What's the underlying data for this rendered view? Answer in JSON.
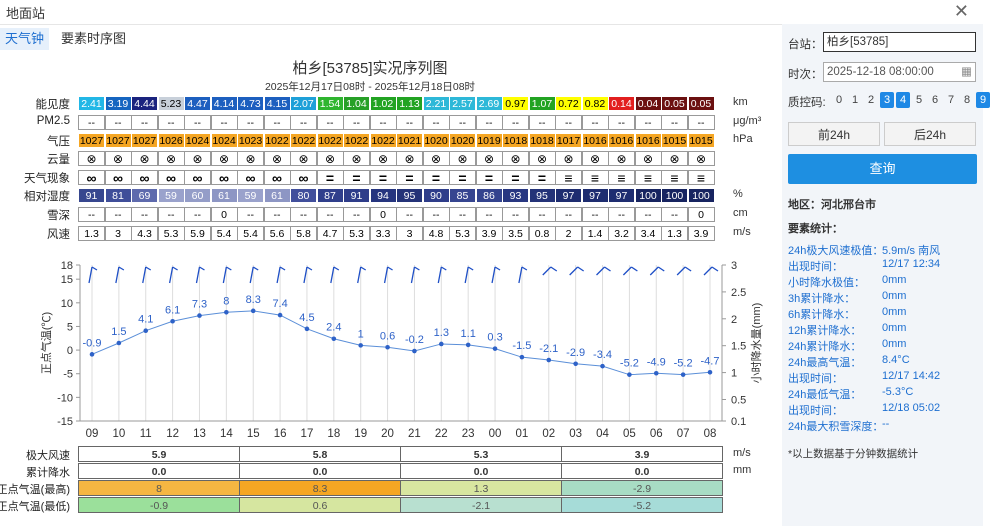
{
  "window": {
    "title": "地面站"
  },
  "tabs": [
    "天气钟",
    "要素时序图"
  ],
  "chart": {
    "title": "柏乡[53785]实况序列图",
    "subtitle": "2025年12月17日08时 - 2025年12月18日08时"
  },
  "rows": [
    {
      "label": "能见度",
      "unit": "km",
      "type": "vis",
      "values": [
        "2.41",
        "3.19",
        "4.44",
        "5.23",
        "4.47",
        "4.14",
        "4.73",
        "4.15",
        "2.07",
        "1.54",
        "1.04",
        "1.02",
        "1.13",
        "2.21",
        "2.57",
        "2.69",
        "0.97",
        "1.07",
        "0.72",
        "0.82",
        "0.14",
        "0.04",
        "0.05",
        "0.05"
      ]
    },
    {
      "label": "PM2.5",
      "unit": "μg/m³",
      "type": "plain",
      "values": [
        "--",
        "--",
        "--",
        "--",
        "--",
        "--",
        "--",
        "--",
        "--",
        "--",
        "--",
        "--",
        "--",
        "--",
        "--",
        "--",
        "--",
        "--",
        "--",
        "--",
        "--",
        "--",
        "--",
        "--"
      ]
    },
    {
      "label": "气压",
      "unit": "hPa",
      "type": "pressure",
      "values": [
        "1027",
        "1027",
        "1027",
        "1026",
        "1024",
        "1024",
        "1023",
        "1022",
        "1022",
        "1022",
        "1022",
        "1022",
        "1021",
        "1020",
        "1020",
        "1019",
        "1018",
        "1018",
        "1017",
        "1016",
        "1016",
        "1016",
        "1015",
        "1015"
      ]
    },
    {
      "label": "云量",
      "unit": "",
      "type": "plain",
      "values": [
        "⊗",
        "⊗",
        "⊗",
        "⊗",
        "⊗",
        "⊗",
        "⊗",
        "⊗",
        "⊗",
        "⊗",
        "⊗",
        "⊗",
        "⊗",
        "⊗",
        "⊗",
        "⊗",
        "⊗",
        "⊗",
        "⊗",
        "⊗",
        "⊗",
        "⊗",
        "⊗",
        "⊗"
      ]
    },
    {
      "label": "天气现象",
      "unit": "",
      "type": "plain",
      "values": [
        "∞",
        "∞",
        "∞",
        "∞",
        "∞",
        "∞",
        "∞",
        "∞",
        "∞",
        "=",
        "=",
        "=",
        "=",
        "=",
        "=",
        "=",
        "=",
        "=",
        "≡",
        "≡",
        "≡",
        "≡",
        "≡",
        "≡"
      ]
    },
    {
      "label": "相对湿度",
      "unit": "%",
      "type": "rh",
      "values": [
        "91",
        "81",
        "69",
        "59",
        "60",
        "61",
        "59",
        "61",
        "80",
        "87",
        "91",
        "94",
        "95",
        "90",
        "85",
        "86",
        "93",
        "95",
        "97",
        "97",
        "97",
        "100",
        "100",
        "100"
      ]
    },
    {
      "label": "雪深",
      "unit": "cm",
      "type": "plain",
      "values": [
        "--",
        "--",
        "--",
        "--",
        "--",
        "0",
        "--",
        "--",
        "--",
        "--",
        "--",
        "0",
        "--",
        "--",
        "--",
        "--",
        "--",
        "--",
        "--",
        "--",
        "--",
        "--",
        "--",
        "0"
      ]
    },
    {
      "label": "风速",
      "unit": "m/s",
      "type": "plain",
      "values": [
        "1.3",
        "3",
        "4.3",
        "5.3",
        "5.9",
        "5.4",
        "5.4",
        "5.6",
        "5.8",
        "4.7",
        "5.3",
        "3.3",
        "3",
        "4.8",
        "5.3",
        "3.9",
        "3.5",
        "0.8",
        "2",
        "1.4",
        "3.2",
        "3.4",
        "1.3",
        "3.9"
      ]
    }
  ],
  "colors": {
    "vis": [
      "#22b7e6",
      "#1565c0",
      "#1a237e",
      "#c8d0da",
      "#1d5fbf",
      "#1d5fbf",
      "#1d5fbf",
      "#1d5fbf",
      "#1ea0d8",
      "#2fb52f",
      "#27a027",
      "#22a322",
      "#22a322",
      "#2db8d8",
      "#2db8d8",
      "#2db8d8",
      "#ffff00",
      "#22a322",
      "#ffff00",
      "#ffff00",
      "#e21f1f",
      "#6b1010",
      "#6b1010",
      "#6b1010"
    ],
    "pressure": "#f5a623",
    "rh": [
      "#37478f",
      "#3f4e99",
      "#5e6aad",
      "#9aa2cc",
      "#949dc8",
      "#8d96c4",
      "#9aa2cc",
      "#8d96c4",
      "#414f9c",
      "#303f8c",
      "#2e3d8a",
      "#26357f",
      "#243378",
      "#2e3d8a",
      "#364590",
      "#33438e",
      "#283781",
      "#243378",
      "#1e2d70",
      "#1e2d70",
      "#1e2d70",
      "#172460",
      "#172460",
      "#172460"
    ]
  },
  "chart_data": {
    "type": "line",
    "x": [
      "09",
      "10",
      "11",
      "12",
      "13",
      "14",
      "15",
      "16",
      "17",
      "18",
      "19",
      "20",
      "21",
      "22",
      "23",
      "00",
      "01",
      "02",
      "03",
      "04",
      "05",
      "06",
      "07",
      "08"
    ],
    "series": [
      {
        "values": [
          -0.9,
          1.5,
          4.1,
          6.1,
          7.3,
          8,
          8.3,
          7.4,
          4.5,
          2.4,
          1,
          0.6,
          -0.2,
          1.3,
          1.1,
          0.3,
          -1.5,
          -2.1,
          -2.9,
          -3.4,
          -5.2,
          -4.9,
          -5.2,
          -4.7
        ]
      }
    ],
    "ylabel": "正点气温(℃)",
    "ylabel_right": "小时降水量(mm)",
    "ylim": [
      -15,
      18
    ],
    "yticks": [
      -15,
      -10,
      -5,
      0,
      5,
      10,
      15,
      18
    ],
    "ylim_right": [
      0.1,
      3
    ],
    "yticks_right": [
      "0.1",
      "0.5",
      "1",
      "1.5",
      "2",
      "2.5",
      "3"
    ],
    "wind_barbs_on_top": true
  },
  "summary": {
    "rows": [
      {
        "label": "极大风速",
        "unit": "m/s",
        "values": [
          "5.9",
          "5.8",
          "5.3",
          "3.9"
        ]
      },
      {
        "label": "累计降水",
        "unit": "mm",
        "values": [
          "0.0",
          "0.0",
          "0.0",
          "0.0"
        ]
      },
      {
        "label": "正点气温(最高)",
        "unit": "",
        "values": [
          "8",
          "8.3",
          "1.3",
          "-2.9"
        ],
        "colors": [
          "#f5b642",
          "#f5a623",
          "#d8e6a0",
          "#a8dcc4"
        ]
      },
      {
        "label": "正点气温(最低)",
        "unit": "",
        "values": [
          "-0.9",
          "0.6",
          "-2.1",
          "-5.2"
        ],
        "colors": [
          "#9be09b",
          "#d6e6a0",
          "#b8e0d0",
          "#a6dcd8"
        ]
      }
    ]
  },
  "sidebar": {
    "station_label": "台站：",
    "station_value": "柏乡[53785]",
    "time_label": "时次：",
    "time_value": "2025-12-18 08:00:00",
    "qc_label": "质控码:",
    "qc_codes": [
      "0",
      "1",
      "2",
      "3",
      "4",
      "5",
      "6",
      "7",
      "8",
      "9"
    ],
    "qc_selected": [
      "3",
      "4",
      "9"
    ],
    "prev_btn": "前24h",
    "next_btn": "后24h",
    "query_btn": "查询",
    "region": "地区：河北邢台市",
    "stats_title": "要素统计：",
    "stats": [
      {
        "label": "24h极大风速极值：",
        "value": "5.9m/s 南风"
      },
      {
        "label": "出现时间：",
        "value": "12/17 12:34"
      },
      {
        "label": "小时降水极值：",
        "value": "0mm"
      },
      {
        "label": "3h累计降水：",
        "value": "0mm"
      },
      {
        "label": "6h累计降水：",
        "value": "0mm"
      },
      {
        "label": "12h累计降水：",
        "value": "0mm"
      },
      {
        "label": "24h累计降水：",
        "value": "0mm"
      },
      {
        "label": "24h最高气温：",
        "value": "8.4°C"
      },
      {
        "label": "出现时间：",
        "value": "12/17 14:42"
      },
      {
        "label": "24h最低气温：",
        "value": "-5.3°C"
      },
      {
        "label": "出现时间：",
        "value": "12/18 05:02"
      },
      {
        "label": "24h最大积雪深度：",
        "value": "--"
      }
    ],
    "footnote": "*以上数据基于分钟数据统计"
  }
}
